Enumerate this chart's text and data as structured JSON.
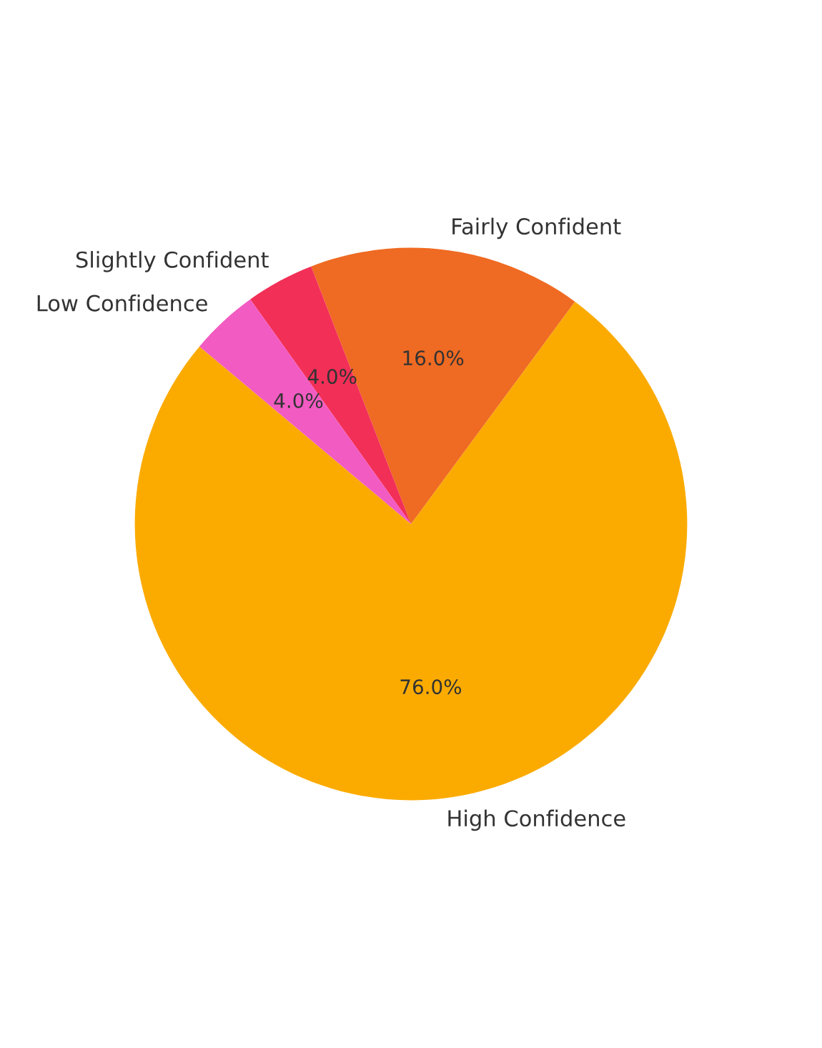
{
  "chart_data": {
    "type": "pie",
    "categories": [
      "High Confidence",
      "Fairly Confident",
      "Slightly Confident",
      "Low Confidence"
    ],
    "values": [
      76,
      16,
      4,
      4
    ],
    "colors": [
      "#fbab00",
      "#ef6a22",
      "#f22f57",
      "#f25bc2"
    ],
    "value_labels": [
      "76.0%",
      "16.0%",
      "4.0%",
      "4.0%"
    ]
  }
}
